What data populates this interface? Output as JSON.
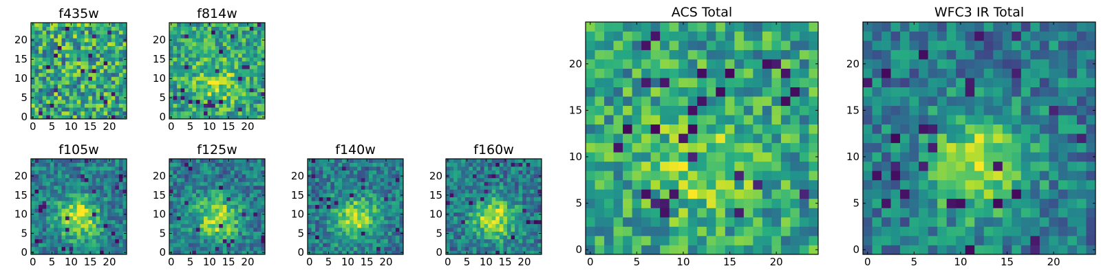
{
  "chart_data": [
    {
      "type": "heatmap",
      "title": "f435w",
      "x_ticks": [
        "0",
        "5",
        "10",
        "15",
        "20"
      ],
      "y_ticks": [
        "0",
        "5",
        "10",
        "15",
        "20"
      ],
      "xlim": [
        0,
        25
      ],
      "ylim": [
        0,
        25
      ],
      "grid_size": 25,
      "colormap": "viridis",
      "pattern": "noise"
    },
    {
      "type": "heatmap",
      "title": "f814w",
      "x_ticks": [
        "0",
        "5",
        "10",
        "15",
        "20"
      ],
      "y_ticks": [
        "0",
        "5",
        "10",
        "15",
        "20"
      ],
      "xlim": [
        0,
        25
      ],
      "ylim": [
        0,
        25
      ],
      "grid_size": 25,
      "colormap": "viridis",
      "pattern": "faint-center"
    },
    {
      "type": "heatmap",
      "title": "f105w",
      "x_ticks": [
        "0",
        "5",
        "10",
        "15",
        "20"
      ],
      "y_ticks": [
        "0",
        "5",
        "10",
        "15",
        "20"
      ],
      "xlim": [
        0,
        25
      ],
      "ylim": [
        0,
        25
      ],
      "grid_size": 25,
      "colormap": "viridis",
      "pattern": "center-blob"
    },
    {
      "type": "heatmap",
      "title": "f125w",
      "x_ticks": [
        "0",
        "5",
        "10",
        "15",
        "20"
      ],
      "y_ticks": [
        "0",
        "5",
        "10",
        "15",
        "20"
      ],
      "xlim": [
        0,
        25
      ],
      "ylim": [
        0,
        25
      ],
      "grid_size": 25,
      "colormap": "viridis",
      "pattern": "center-blob"
    },
    {
      "type": "heatmap",
      "title": "f140w",
      "x_ticks": [
        "0",
        "5",
        "10",
        "15",
        "20"
      ],
      "y_ticks": [
        "0",
        "5",
        "10",
        "15",
        "20"
      ],
      "xlim": [
        0,
        25
      ],
      "ylim": [
        0,
        25
      ],
      "grid_size": 25,
      "colormap": "viridis",
      "pattern": "center-blob"
    },
    {
      "type": "heatmap",
      "title": "f160w",
      "x_ticks": [
        "0",
        "5",
        "10",
        "15",
        "20"
      ],
      "y_ticks": [
        "0",
        "5",
        "10",
        "15",
        "20"
      ],
      "xlim": [
        0,
        25
      ],
      "ylim": [
        0,
        25
      ],
      "grid_size": 25,
      "colormap": "viridis",
      "pattern": "center-blob"
    },
    {
      "type": "heatmap",
      "title": "ACS Total",
      "x_ticks": [
        "0",
        "5",
        "10",
        "15",
        "20"
      ],
      "y_ticks": [
        "0",
        "5",
        "10",
        "15",
        "20"
      ],
      "xlim": [
        0,
        25
      ],
      "ylim": [
        0,
        25
      ],
      "grid_size": 25,
      "colormap": "viridis",
      "pattern": "faint-center"
    },
    {
      "type": "heatmap",
      "title": "WFC3 IR Total",
      "x_ticks": [
        "0",
        "5",
        "10",
        "15",
        "20"
      ],
      "y_ticks": [
        "0",
        "5",
        "10",
        "15",
        "20"
      ],
      "xlim": [
        0,
        25
      ],
      "ylim": [
        0,
        25
      ],
      "grid_size": 25,
      "colormap": "viridis",
      "pattern": "center-blob"
    }
  ],
  "colors": {
    "viridis_dark": "#440154",
    "viridis_blue": "#31688e",
    "viridis_teal": "#21918c",
    "viridis_green": "#35b779",
    "viridis_yellow": "#fde725",
    "frame": "#000000",
    "background": "#ffffff"
  }
}
